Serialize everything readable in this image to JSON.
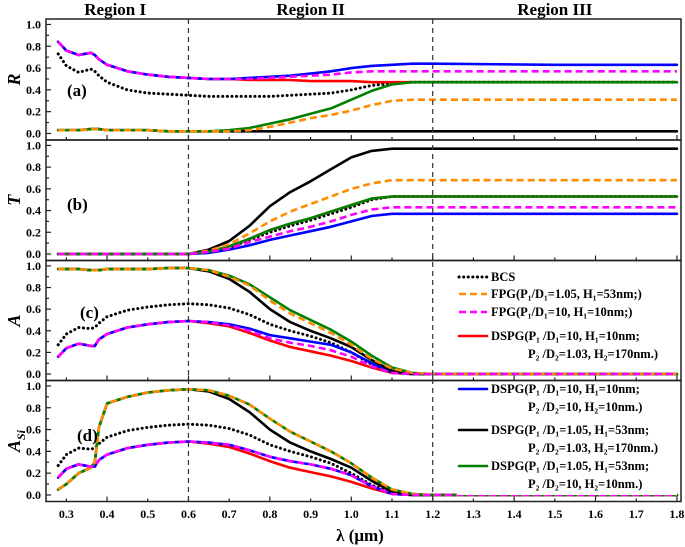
{
  "chart_data": {
    "type": "line",
    "xlabel": "λ (μm)",
    "xlim": [
      0.25,
      1.81
    ],
    "x_ticks": [
      "0.3",
      "0.4",
      "0.5",
      "0.6",
      "0.7",
      "0.8",
      "0.9",
      "1.0",
      "1.1",
      "1.2",
      "1.3",
      "1.4",
      "1.5",
      "1.6",
      "1.7",
      "1.8"
    ],
    "y_ticks": [
      "0.0",
      "0.2",
      "0.4",
      "0.6",
      "0.8",
      "1.0"
    ],
    "region_labels": [
      {
        "text": "Region I",
        "center": 0.42
      },
      {
        "text": "Region II",
        "center": 0.9
      },
      {
        "text": "Region III",
        "center": 1.5
      }
    ],
    "region_boundaries": [
      0.6,
      1.2
    ],
    "legend": [
      {
        "line1": "BCS",
        "line2": "",
        "color": "#000000",
        "style": "dotted"
      },
      {
        "line1": "FPG(P₁/D₁=1.05, H₁=53nm;)",
        "line2": "",
        "color": "#ff8c00",
        "style": "dashed"
      },
      {
        "line1": "FPG(P₁/D₁=10, H₁=10nm;)",
        "line2": "",
        "color": "#ff00ff",
        "style": "dashed"
      },
      {
        "line1": "DSPG(P₁ /D₁=10, H₁=10nm;",
        "line2": "P₂ /D₂=1.03, H₂=170nm.)",
        "color": "#ff0000",
        "style": "solid"
      },
      {
        "line1": "DSPG(P₁ /D₁=10, H₁=10nm;",
        "line2": "P₂ /D₂=10, H₂=10nm.)",
        "color": "#0000ff",
        "style": "solid"
      },
      {
        "line1": "DSPG(P₁ /D₁=1.05, H₁=53nm;",
        "line2": "P₂ /D₂=1.03, H₂=170nm.)",
        "color": "#000000",
        "style": "solid"
      },
      {
        "line1": "DSPG(P₁ /D₁=1.05, H₁=53nm;",
        "line2": "P₂ /D₂=10, H₂=10nm.)",
        "color": "#008000",
        "style": "solid"
      }
    ],
    "x": [
      0.28,
      0.3,
      0.33,
      0.36,
      0.37,
      0.38,
      0.4,
      0.45,
      0.5,
      0.55,
      0.6,
      0.65,
      0.7,
      0.75,
      0.8,
      0.85,
      0.9,
      0.95,
      1.0,
      1.05,
      1.1,
      1.15,
      1.2,
      1.5,
      1.8
    ],
    "panels": [
      {
        "label": "(a)",
        "ylabel": "R",
        "ylabel_sub": "",
        "ylim": [
          -0.06,
          1.05
        ],
        "series": [
          [
            0.73,
            0.62,
            0.56,
            0.59,
            0.57,
            0.53,
            0.47,
            0.4,
            0.37,
            0.36,
            0.35,
            0.34,
            0.34,
            0.34,
            0.34,
            0.35,
            0.36,
            0.37,
            0.4,
            0.44,
            0.46,
            0.47,
            0.47,
            0.47,
            0.47
          ],
          [
            0.03,
            0.03,
            0.03,
            0.04,
            0.04,
            0.04,
            0.03,
            0.03,
            0.03,
            0.02,
            0.02,
            0.02,
            0.02,
            0.03,
            0.06,
            0.1,
            0.14,
            0.17,
            0.21,
            0.26,
            0.3,
            0.31,
            0.31,
            0.31,
            0.31
          ],
          [
            0.84,
            0.76,
            0.72,
            0.74,
            0.72,
            0.68,
            0.63,
            0.57,
            0.54,
            0.52,
            0.51,
            0.5,
            0.5,
            0.5,
            0.51,
            0.52,
            0.53,
            0.54,
            0.56,
            0.57,
            0.57,
            0.57,
            0.57,
            0.57,
            0.57
          ],
          [
            0.84,
            0.76,
            0.72,
            0.74,
            0.72,
            0.68,
            0.63,
            0.57,
            0.54,
            0.52,
            0.51,
            0.5,
            0.5,
            0.49,
            0.49,
            0.49,
            0.48,
            0.48,
            0.48,
            0.47,
            0.47,
            0.47,
            0.47,
            0.47,
            0.47
          ],
          [
            0.84,
            0.76,
            0.72,
            0.74,
            0.72,
            0.68,
            0.63,
            0.57,
            0.54,
            0.52,
            0.51,
            0.5,
            0.5,
            0.51,
            0.52,
            0.53,
            0.55,
            0.57,
            0.6,
            0.62,
            0.63,
            0.64,
            0.64,
            0.63,
            0.63
          ],
          [
            0.03,
            0.03,
            0.03,
            0.04,
            0.04,
            0.04,
            0.03,
            0.03,
            0.03,
            0.02,
            0.02,
            0.02,
            0.02,
            0.02,
            0.02,
            0.02,
            0.02,
            0.02,
            0.02,
            0.02,
            0.02,
            0.02,
            0.02,
            0.02,
            0.02
          ],
          [
            0.03,
            0.03,
            0.03,
            0.04,
            0.04,
            0.04,
            0.03,
            0.03,
            0.03,
            0.02,
            0.02,
            0.02,
            0.03,
            0.05,
            0.09,
            0.13,
            0.18,
            0.23,
            0.31,
            0.39,
            0.45,
            0.47,
            0.47,
            0.47,
            0.47
          ]
        ]
      },
      {
        "label": "(b)",
        "ylabel": "T",
        "ylabel_sub": "",
        "ylim": [
          -0.06,
          1.05
        ],
        "series": [
          [
            0,
            0,
            0,
            0,
            0,
            0,
            0,
            0,
            0,
            0,
            0,
            0.02,
            0.06,
            0.13,
            0.2,
            0.26,
            0.31,
            0.37,
            0.43,
            0.5,
            0.53,
            0.53,
            0.53,
            0.53,
            0.53
          ],
          [
            0,
            0,
            0,
            0,
            0,
            0,
            0,
            0,
            0,
            0,
            0,
            0.03,
            0.09,
            0.19,
            0.3,
            0.39,
            0.46,
            0.53,
            0.6,
            0.65,
            0.68,
            0.68,
            0.68,
            0.68,
            0.68
          ],
          [
            0,
            0,
            0,
            0,
            0,
            0,
            0,
            0,
            0,
            0,
            0,
            0.02,
            0.05,
            0.11,
            0.16,
            0.21,
            0.25,
            0.3,
            0.36,
            0.41,
            0.43,
            0.43,
            0.43,
            0.43,
            0.43
          ],
          [
            0,
            0,
            0,
            0,
            0,
            0,
            0,
            0,
            0,
            0,
            0,
            0.02,
            0.07,
            0.14,
            0.22,
            0.28,
            0.33,
            0.39,
            0.45,
            0.51,
            0.53,
            0.53,
            0.53,
            0.53,
            0.53
          ],
          [
            0,
            0,
            0,
            0,
            0,
            0,
            0,
            0,
            0,
            0,
            0,
            0.01,
            0.04,
            0.08,
            0.13,
            0.17,
            0.21,
            0.25,
            0.3,
            0.35,
            0.37,
            0.37,
            0.37,
            0.37,
            0.37
          ],
          [
            0,
            0,
            0,
            0,
            0,
            0,
            0,
            0,
            0,
            0,
            0,
            0.04,
            0.12,
            0.26,
            0.44,
            0.57,
            0.67,
            0.78,
            0.89,
            0.95,
            0.97,
            0.97,
            0.97,
            0.97,
            0.97
          ],
          [
            0,
            0,
            0,
            0,
            0,
            0,
            0,
            0,
            0,
            0,
            0,
            0.02,
            0.07,
            0.14,
            0.22,
            0.28,
            0.33,
            0.39,
            0.45,
            0.51,
            0.53,
            0.53,
            0.53,
            0.53,
            0.53
          ]
        ]
      },
      {
        "label": "(c)",
        "ylabel": "A",
        "ylabel_sub": "",
        "ylim": [
          -0.06,
          1.05
        ],
        "series": [
          [
            0.27,
            0.37,
            0.43,
            0.42,
            0.43,
            0.47,
            0.53,
            0.59,
            0.62,
            0.64,
            0.65,
            0.64,
            0.61,
            0.55,
            0.46,
            0.4,
            0.35,
            0.29,
            0.2,
            0.09,
            0.02,
            0,
            0,
            0,
            0
          ],
          [
            0.97,
            0.97,
            0.97,
            0.96,
            0.96,
            0.96,
            0.97,
            0.97,
            0.97,
            0.98,
            0.98,
            0.96,
            0.9,
            0.82,
            0.68,
            0.56,
            0.47,
            0.38,
            0.27,
            0.14,
            0.05,
            0.01,
            0,
            0,
            0
          ],
          [
            0.16,
            0.24,
            0.28,
            0.26,
            0.26,
            0.32,
            0.37,
            0.43,
            0.46,
            0.48,
            0.49,
            0.48,
            0.45,
            0.4,
            0.33,
            0.29,
            0.26,
            0.22,
            0.16,
            0.07,
            0.01,
            0,
            0,
            0,
            0
          ],
          [
            0.16,
            0.24,
            0.28,
            0.26,
            0.26,
            0.32,
            0.37,
            0.43,
            0.46,
            0.48,
            0.49,
            0.47,
            0.44,
            0.38,
            0.31,
            0.25,
            0.21,
            0.17,
            0.12,
            0.06,
            0.01,
            0,
            0,
            0,
            0
          ],
          [
            0.16,
            0.24,
            0.28,
            0.26,
            0.26,
            0.32,
            0.37,
            0.43,
            0.46,
            0.48,
            0.49,
            0.48,
            0.46,
            0.42,
            0.36,
            0.33,
            0.3,
            0.27,
            0.2,
            0.1,
            0.02,
            0,
            0,
            0,
            0
          ],
          [
            0.97,
            0.97,
            0.97,
            0.96,
            0.96,
            0.96,
            0.97,
            0.97,
            0.97,
            0.98,
            0.98,
            0.95,
            0.88,
            0.76,
            0.6,
            0.48,
            0.4,
            0.33,
            0.25,
            0.13,
            0.03,
            0,
            0,
            0,
            0
          ],
          [
            0.97,
            0.97,
            0.97,
            0.96,
            0.96,
            0.96,
            0.97,
            0.97,
            0.97,
            0.98,
            0.98,
            0.96,
            0.91,
            0.83,
            0.71,
            0.59,
            0.5,
            0.41,
            0.3,
            0.17,
            0.06,
            0.01,
            0,
            0,
            0
          ]
        ]
      },
      {
        "label": "(d)",
        "ylabel": "A",
        "ylabel_sub": "Si",
        "ylim": [
          -0.06,
          1.05
        ],
        "series": [
          [
            0.27,
            0.37,
            0.43,
            0.42,
            0.43,
            0.47,
            0.53,
            0.59,
            0.62,
            0.64,
            0.65,
            0.64,
            0.61,
            0.55,
            0.46,
            0.4,
            0.35,
            0.29,
            0.2,
            0.09,
            0.02,
            0,
            0,
            0,
            0
          ],
          [
            0.05,
            0.1,
            0.2,
            0.25,
            0.3,
            0.62,
            0.84,
            0.9,
            0.94,
            0.96,
            0.97,
            0.96,
            0.91,
            0.83,
            0.7,
            0.58,
            0.49,
            0.4,
            0.29,
            0.16,
            0.05,
            0.01,
            0,
            0,
            0
          ],
          [
            0.16,
            0.24,
            0.28,
            0.26,
            0.26,
            0.32,
            0.37,
            0.43,
            0.46,
            0.48,
            0.49,
            0.48,
            0.46,
            0.41,
            0.35,
            0.31,
            0.28,
            0.24,
            0.18,
            0.08,
            0.01,
            0,
            0,
            0,
            0
          ],
          [
            0.16,
            0.24,
            0.28,
            0.26,
            0.26,
            0.32,
            0.37,
            0.43,
            0.46,
            0.48,
            0.49,
            0.47,
            0.44,
            0.38,
            0.31,
            0.25,
            0.21,
            0.17,
            0.12,
            0.06,
            0.01,
            0,
            0,
            0,
            0
          ],
          [
            0.16,
            0.24,
            0.28,
            0.26,
            0.26,
            0.32,
            0.37,
            0.43,
            0.46,
            0.48,
            0.49,
            0.48,
            0.46,
            0.41,
            0.35,
            0.31,
            0.28,
            0.24,
            0.18,
            0.08,
            0.01,
            0,
            0,
            0,
            0
          ],
          [
            0.05,
            0.1,
            0.2,
            0.25,
            0.3,
            0.62,
            0.84,
            0.9,
            0.94,
            0.96,
            0.97,
            0.95,
            0.88,
            0.76,
            0.6,
            0.48,
            0.4,
            0.33,
            0.25,
            0.13,
            0.03,
            0,
            0,
            0,
            0
          ],
          [
            0.05,
            0.1,
            0.2,
            0.25,
            0.3,
            0.62,
            0.84,
            0.9,
            0.94,
            0.96,
            0.97,
            0.96,
            0.91,
            0.83,
            0.7,
            0.58,
            0.49,
            0.4,
            0.29,
            0.16,
            0.05,
            0.01,
            0,
            0,
            0
          ]
        ]
      }
    ]
  }
}
